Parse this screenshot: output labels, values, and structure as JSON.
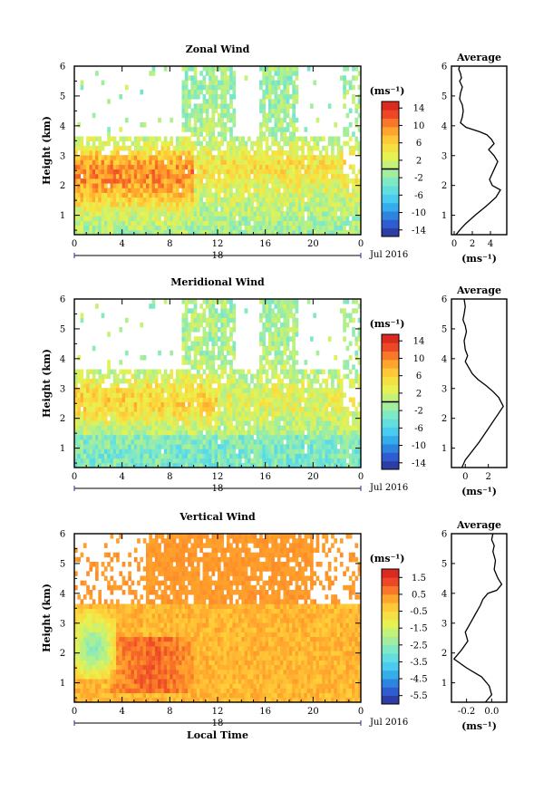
{
  "figure": {
    "date_label": "Jul 2016",
    "day_label": "18",
    "xlabel": "Local Time",
    "ylabel": "Height (km)",
    "unit": "(ms⁻¹)",
    "avg_title": "Average",
    "x_ticks": [
      "0",
      "4",
      "8",
      "12",
      "16",
      "20",
      "0"
    ]
  },
  "chart_data": [
    {
      "type": "heatmap",
      "title": "Zonal Wind",
      "xlabel": "Local Time",
      "ylabel": "Height (km)",
      "x_range": [
        0,
        24
      ],
      "y_range": [
        0.35,
        6.0
      ],
      "y_ticks": [
        1,
        2,
        3,
        4,
        5,
        6
      ],
      "colorbar": {
        "label": "(ms⁻¹)",
        "range": [
          -15.5,
          15.5
        ],
        "ticks": [
          14,
          10,
          6,
          2,
          -2,
          -6,
          -10,
          -14
        ],
        "zero_line": true
      },
      "color_stops": [
        "#2b2d8c",
        "#2f5fd6",
        "#2ea3e8",
        "#4fd6f0",
        "#7ce8c9",
        "#b3f08a",
        "#e9f24e",
        "#ffd23a",
        "#ff9a2a",
        "#f04a28",
        "#d21d1d"
      ],
      "pattern": "zonal"
    },
    {
      "type": "line",
      "title": "Average",
      "series": [
        {
          "x": [
            0.2,
            0.6,
            1.2,
            2.3,
            3.5,
            4.6,
            5.1,
            4.2,
            3.9,
            4.2,
            4.5,
            4.8,
            4.4,
            3.8,
            4.4,
            4.1,
            3.6,
            2.8,
            1.3,
            0.7,
            0.9,
            1.0,
            0.9,
            0.6,
            0.7,
            0.9,
            0.6,
            0.8,
            0.7,
            0.5,
            0.6
          ],
          "y": [
            0.35,
            0.5,
            0.7,
            1.0,
            1.3,
            1.6,
            1.85,
            2.0,
            2.2,
            2.4,
            2.6,
            2.8,
            3.0,
            3.2,
            3.4,
            3.55,
            3.7,
            3.8,
            3.95,
            4.1,
            4.3,
            4.5,
            4.7,
            4.9,
            5.1,
            5.3,
            5.5,
            5.6,
            5.75,
            5.9,
            6.0
          ]
        }
      ],
      "xlabel": "(ms⁻¹)",
      "xlim": [
        -0.3,
        5.8
      ],
      "ylim": [
        0.35,
        6.0
      ],
      "x_ticks": [
        0,
        2,
        4
      ],
      "y_ticks": [
        1,
        2,
        3,
        4,
        5,
        6
      ]
    },
    {
      "type": "heatmap",
      "title": "Meridional Wind",
      "xlabel": "Local Time",
      "ylabel": "Height (km)",
      "x_range": [
        0,
        24
      ],
      "y_range": [
        0.35,
        6.0
      ],
      "y_ticks": [
        1,
        2,
        3,
        4,
        5,
        6
      ],
      "colorbar": {
        "label": "(ms⁻¹)",
        "range": [
          -15.5,
          15.5
        ],
        "ticks": [
          14,
          10,
          6,
          2,
          -2,
          -6,
          -10,
          -14
        ],
        "zero_line": true
      },
      "color_stops": [
        "#2b2d8c",
        "#2f5fd6",
        "#2ea3e8",
        "#4fd6f0",
        "#7ce8c9",
        "#b3f08a",
        "#e9f24e",
        "#ffd23a",
        "#ff9a2a",
        "#f04a28",
        "#d21d1d"
      ],
      "pattern": "meridional"
    },
    {
      "type": "line",
      "title": "Average",
      "series": [
        {
          "x": [
            -0.3,
            0.0,
            0.6,
            1.2,
            1.9,
            2.6,
            3.3,
            2.9,
            2.4,
            1.8,
            1.1,
            0.6,
            0.3,
            0.0,
            0.2,
            0.0,
            -0.1,
            0.1,
            0.0,
            -0.2,
            -0.1,
            0.0,
            -0.1
          ],
          "y": [
            0.35,
            0.6,
            0.9,
            1.2,
            1.6,
            2.0,
            2.4,
            2.7,
            2.9,
            3.1,
            3.3,
            3.5,
            3.7,
            3.9,
            4.1,
            4.3,
            4.6,
            4.9,
            5.1,
            5.3,
            5.5,
            5.75,
            6.0
          ]
        }
      ],
      "xlabel": "(ms⁻¹)",
      "xlim": [
        -1.2,
        3.6
      ],
      "ylim": [
        0.35,
        6.0
      ],
      "x_ticks": [
        0,
        2
      ],
      "y_ticks": [
        1,
        2,
        3,
        4,
        5,
        6
      ]
    },
    {
      "type": "heatmap",
      "title": "Vertical Wind",
      "xlabel": "Local Time",
      "ylabel": "Height (km)",
      "x_range": [
        0,
        24
      ],
      "y_range": [
        0.35,
        6.0
      ],
      "y_ticks": [
        1,
        2,
        3,
        4,
        5,
        6
      ],
      "colorbar": {
        "label": "(ms⁻¹)",
        "range": [
          -6.0,
          2.0
        ],
        "ticks": [
          1.5,
          0.5,
          -0.5,
          -1.5,
          -2.5,
          -3.5,
          -4.5,
          -5.5
        ],
        "zero_line": false
      },
      "color_stops": [
        "#2b2d8c",
        "#2f5fd6",
        "#2ea3e8",
        "#4fd6f0",
        "#7ce8c9",
        "#b3f08a",
        "#e9f24e",
        "#ffd23a",
        "#ff9a2a",
        "#f04a28",
        "#d21d1d"
      ],
      "pattern": "vertical"
    },
    {
      "type": "line",
      "title": "Average",
      "series": [
        {
          "x": [
            -0.05,
            0.0,
            -0.02,
            -0.08,
            -0.2,
            -0.3,
            -0.24,
            -0.19,
            -0.21,
            -0.17,
            -0.13,
            -0.09,
            -0.07,
            -0.03,
            0.04,
            0.08,
            0.05,
            0.02,
            0.03,
            0.01,
            0.02,
            0.0,
            0.01
          ],
          "y": [
            0.35,
            0.6,
            0.9,
            1.2,
            1.5,
            1.8,
            2.1,
            2.4,
            2.7,
            3.0,
            3.3,
            3.6,
            3.8,
            4.0,
            4.1,
            4.3,
            4.5,
            4.8,
            5.1,
            5.4,
            5.6,
            5.8,
            6.0
          ]
        }
      ],
      "xlabel": "(ms⁻¹)",
      "xlim": [
        -0.32,
        0.12
      ],
      "ylim": [
        0.35,
        6.0
      ],
      "x_ticks": [
        -0.2,
        0.0
      ],
      "y_ticks": [
        1,
        2,
        3,
        4,
        5,
        6
      ]
    }
  ]
}
